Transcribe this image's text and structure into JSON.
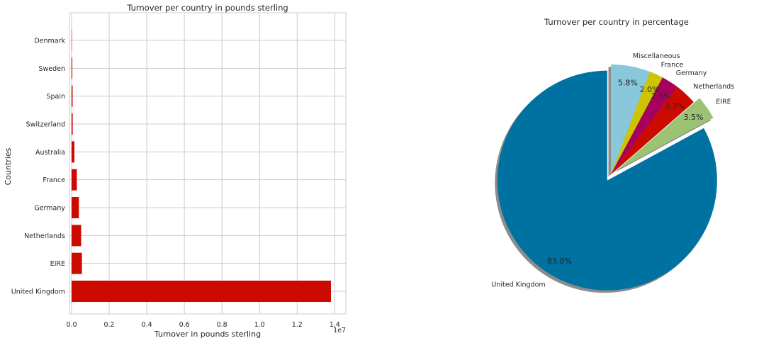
{
  "chart_data": [
    {
      "type": "bar",
      "orientation": "horizontal",
      "title": "Turnover per country in pounds sterling",
      "xlabel": "Turnover in pounds sterling",
      "ylabel": "Countries",
      "x_offset_text": "1e7",
      "xlim": [
        0,
        14600000
      ],
      "x_ticks": [
        0,
        2000000,
        4000000,
        6000000,
        8000000,
        10000000,
        12000000,
        14000000
      ],
      "x_tick_labels": [
        "0.0",
        "0.2",
        "0.4",
        "0.6",
        "0.8",
        "1.0",
        "1.2",
        "1.4"
      ],
      "categories": [
        "United Kingdom",
        "EIRE",
        "Netherlands",
        "Germany",
        "France",
        "Australia",
        "Switzerland",
        "Spain",
        "Sweden",
        "Denmark"
      ],
      "values": [
        13800000,
        550000,
        510000,
        390000,
        280000,
        150000,
        60000,
        55000,
        40000,
        18000
      ],
      "bar_color": "#cc0a00",
      "grid": true
    },
    {
      "type": "pie",
      "title": "Turnover per country in percentage",
      "slices": [
        {
          "label": "United Kingdom",
          "value": 83.0,
          "pct_label": "83.0%",
          "color": "#0072a2",
          "explode": true
        },
        {
          "label": "EIRE",
          "value": 3.5,
          "pct_label": "3.5%",
          "color": "#9bc373",
          "explode": true
        },
        {
          "label": "Netherlands",
          "value": 3.3,
          "pct_label": "3.3%",
          "color": "#cc0a00",
          "explode": false
        },
        {
          "label": "Germany",
          "value": 2.5,
          "pct_label": "2.5%",
          "color": "#a8005d",
          "explode": false
        },
        {
          "label": "France",
          "value": 2.0,
          "pct_label": "2.0%",
          "color": "#cfc400",
          "explode": false
        },
        {
          "label": "Miscellaneous",
          "value": 5.8,
          "pct_label": "5.8%",
          "color": "#88c8da",
          "explode": false
        }
      ],
      "shadow": true,
      "start_angle_deg": 90
    }
  ]
}
